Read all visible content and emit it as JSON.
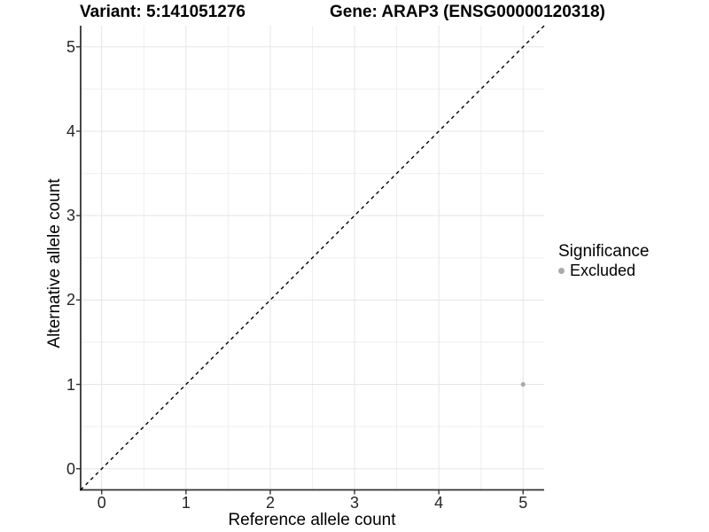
{
  "chart_data": {
    "type": "scatter",
    "title_left": "Variant: 5:141051276",
    "title_right": "Gene: ARAP3 (ENSG00000120318)",
    "xlabel": "Reference allele count",
    "ylabel": "Alternative allele count",
    "xlim": [
      -0.25,
      5.25
    ],
    "ylim": [
      -0.25,
      5.25
    ],
    "x_ticks": [
      0,
      1,
      2,
      3,
      4,
      5
    ],
    "y_ticks": [
      0,
      1,
      2,
      3,
      4,
      5
    ],
    "grid": "major and minor gridlines on white background",
    "reference_line": {
      "kind": "identity y=x",
      "style": "dashed",
      "color": "#000000"
    },
    "series": [
      {
        "name": "Excluded",
        "color": "#aaaaaa",
        "points": [
          {
            "x": 5,
            "y": 1
          }
        ]
      }
    ],
    "legend": {
      "title": "Significance",
      "position": "right",
      "items": [
        {
          "label": "Excluded",
          "color": "#aaaaaa"
        }
      ]
    },
    "colors": {
      "grid_major": "#e5e5e5",
      "grid_minor": "#efefef",
      "axis": "#333333",
      "tick_text": "#262626",
      "dashed_line": "#000000"
    }
  }
}
